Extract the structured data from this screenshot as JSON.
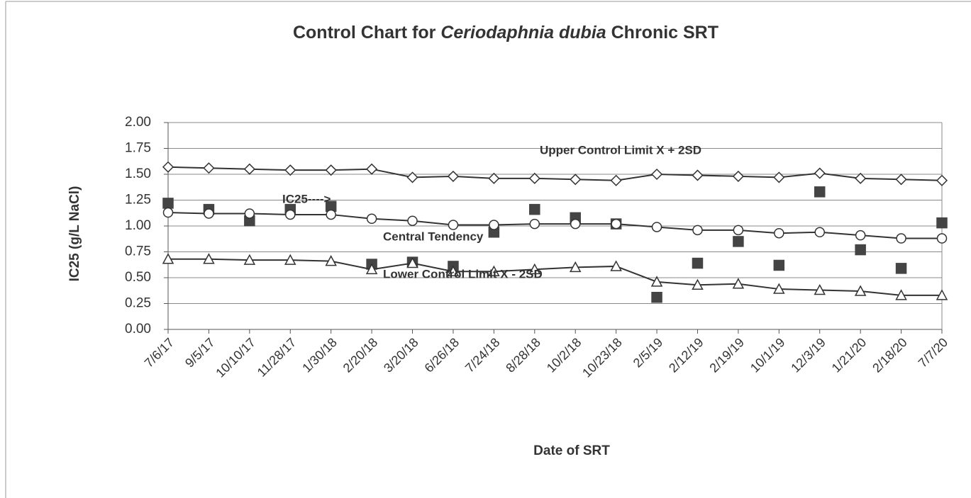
{
  "chart_data": {
    "type": "line",
    "title": [
      {
        "text": "Control Chart for ",
        "italic": false
      },
      {
        "text": "Ceriodaphnia dubia",
        "italic": true
      },
      {
        "text": " Chronic SRT",
        "italic": false
      }
    ],
    "x_label": "Date of SRT",
    "y_label": "IC25 (g/L NaCl)",
    "categories": [
      "7/6/17",
      "9/5/17",
      "10/10/17",
      "11/28/17",
      "1/30/18",
      "2/20/18",
      "3/20/18",
      "6/26/18",
      "7/24/18",
      "8/28/18",
      "10/2/18",
      "10/23/18",
      "2/5/19",
      "2/12/19",
      "2/19/19",
      "10/1/19",
      "12/3/19",
      "1/21/20",
      "2/18/20",
      "7/7/20"
    ],
    "ylim": [
      0,
      2
    ],
    "yticks": [
      {
        "value": 0,
        "label": "0.00"
      },
      {
        "value": 0.25,
        "label": "0.25"
      },
      {
        "value": 0.5,
        "label": "0.50"
      },
      {
        "value": 0.75,
        "label": "0.75"
      },
      {
        "value": 1,
        "label": "1.00"
      },
      {
        "value": 1.25,
        "label": "1.25"
      },
      {
        "value": 1.5,
        "label": "1.50"
      },
      {
        "value": 1.75,
        "label": "1.75"
      },
      {
        "value": 2,
        "label": "2.00"
      }
    ],
    "grid": true,
    "series": [
      {
        "name": "Upper Control Limit X + 2SD",
        "color": "#333333",
        "marker": "diamond",
        "line": true,
        "values": [
          1.57,
          1.56,
          1.55,
          1.54,
          1.54,
          1.55,
          1.47,
          1.48,
          1.46,
          1.46,
          1.45,
          1.44,
          1.5,
          1.49,
          1.48,
          1.47,
          1.51,
          1.46,
          1.45,
          1.44
        ]
      },
      {
        "name": "IC25---->",
        "color": "#444444",
        "marker": "square",
        "line": false,
        "values": [
          1.22,
          1.16,
          1.05,
          1.16,
          1.19,
          0.63,
          0.65,
          0.61,
          0.94,
          1.16,
          1.08,
          1.02,
          0.31,
          0.64,
          0.85,
          0.62,
          1.33,
          0.77,
          0.59,
          1.03
        ]
      },
      {
        "name": "Central Tendency",
        "color": "#333333",
        "marker": "circle",
        "line": true,
        "values": [
          1.13,
          1.12,
          1.12,
          1.11,
          1.11,
          1.07,
          1.05,
          1.01,
          1.01,
          1.02,
          1.02,
          1.02,
          0.99,
          0.96,
          0.96,
          0.93,
          0.94,
          0.91,
          0.88,
          0.88
        ]
      },
      {
        "name": "Lower Control Limit X - 2SD",
        "color": "#333333",
        "marker": "triangle",
        "line": true,
        "values": [
          0.68,
          0.68,
          0.67,
          0.67,
          0.66,
          0.58,
          0.64,
          0.56,
          0.56,
          0.58,
          0.6,
          0.61,
          0.46,
          0.43,
          0.44,
          0.39,
          0.38,
          0.37,
          0.33,
          0.33
        ]
      }
    ]
  }
}
